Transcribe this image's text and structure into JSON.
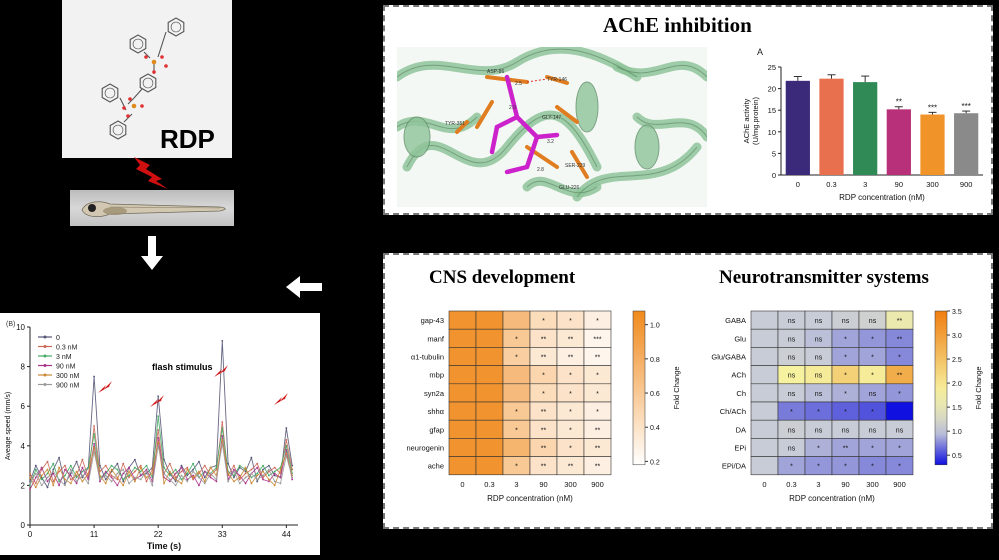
{
  "rdp_label": "RDP",
  "ache_title": "AChE inhibition",
  "cns_title": "CNS development",
  "nt_title": "Neurotransmitter systems",
  "flash_label": "flash stimulus",
  "docking_labels": [
    "ASP-86",
    "TYR-146",
    "GLY-147",
    "TYR-351",
    "SER-229",
    "GLU-226",
    "2.5",
    "2.9",
    "3.2",
    "2.8"
  ],
  "colors": {
    "molecule_bond": "#555555",
    "phosphorus": "#e08a1e",
    "oxygen": "#e03030",
    "lightning": "#d01010",
    "protein": "#8fc49a",
    "ligand": "#cc22cc",
    "residue": "#e07d20"
  },
  "speed_chart": {
    "type": "line",
    "panel_label": "(B)",
    "ylabel": "Aveage speed (mm/s)",
    "xlabel": "Time (s)",
    "xlim": [
      0,
      46
    ],
    "ylim": [
      0,
      10
    ],
    "xticks": [
      "0",
      "11",
      "22",
      "33",
      "44"
    ],
    "yticks": [
      "0",
      "2",
      "4",
      "6",
      "8",
      "10"
    ],
    "legend": [
      "0",
      "0.3 nM",
      "3 nM",
      "90 nM",
      "300 nM",
      "900 nM"
    ],
    "series_colors": [
      "#555577",
      "#cc6655",
      "#44aa66",
      "#aa3388",
      "#cc8833",
      "#999999"
    ],
    "x": [
      0,
      1,
      2,
      3,
      4,
      5,
      6,
      7,
      8,
      9,
      10,
      11,
      12,
      13,
      14,
      15,
      16,
      17,
      18,
      19,
      20,
      21,
      22,
      23,
      24,
      25,
      26,
      27,
      28,
      29,
      30,
      31,
      32,
      33,
      34,
      35,
      36,
      37,
      38,
      39,
      40,
      41,
      42,
      43,
      44,
      45
    ],
    "series": [
      {
        "values": [
          2.2,
          3.0,
          2.4,
          1.9,
          2.8,
          3.4,
          2.1,
          2.6,
          3.2,
          2.4,
          2.9,
          7.5,
          3.0,
          2.3,
          2.7,
          3.1,
          2.2,
          2.9,
          3.3,
          2.5,
          2.6,
          2.9,
          6.5,
          3.3,
          2.6,
          2.2,
          3.0,
          2.5,
          2.8,
          3.2,
          2.4,
          2.9,
          3.0,
          9.3,
          3.1,
          2.4,
          2.9,
          2.7,
          3.4,
          2.2,
          2.8,
          3.0,
          2.5,
          2.4,
          4.9,
          3.0
        ]
      },
      {
        "values": [
          2.6,
          2.1,
          2.8,
          3.2,
          2.2,
          2.7,
          3.0,
          2.3,
          2.5,
          3.3,
          2.4,
          5.0,
          2.7,
          3.0,
          2.5,
          2.3,
          3.1,
          2.4,
          2.7,
          3.0,
          2.2,
          2.8,
          4.8,
          2.6,
          3.1,
          2.4,
          2.7,
          2.9,
          2.3,
          2.6,
          3.0,
          2.5,
          2.8,
          5.2,
          2.5,
          3.0,
          2.3,
          2.6,
          2.8,
          3.1,
          2.4,
          2.7,
          2.9,
          2.6,
          4.3,
          2.8
        ]
      },
      {
        "values": [
          2.0,
          2.8,
          2.3,
          2.6,
          3.1,
          2.2,
          2.5,
          3.0,
          2.4,
          2.7,
          2.9,
          4.6,
          2.4,
          2.6,
          3.0,
          2.8,
          2.3,
          2.5,
          2.9,
          2.7,
          3.0,
          2.4,
          5.5,
          2.9,
          2.5,
          2.8,
          2.3,
          2.6,
          3.1,
          2.4,
          2.7,
          2.6,
          2.9,
          4.9,
          2.7,
          2.5,
          3.0,
          2.8,
          2.4,
          2.6,
          3.0,
          2.5,
          2.7,
          2.9,
          4.0,
          2.6
        ]
      },
      {
        "values": [
          1.8,
          2.4,
          2.9,
          2.2,
          2.6,
          2.0,
          2.8,
          2.5,
          2.1,
          2.9,
          2.3,
          4.1,
          2.2,
          2.7,
          2.4,
          2.0,
          2.6,
          2.9,
          2.3,
          2.5,
          2.8,
          2.2,
          4.4,
          2.4,
          2.2,
          2.6,
          2.9,
          2.3,
          2.5,
          2.0,
          2.7,
          2.4,
          2.2,
          4.5,
          2.3,
          2.8,
          2.5,
          2.1,
          2.6,
          2.9,
          2.3,
          2.2,
          2.6,
          2.4,
          3.8,
          2.3
        ]
      },
      {
        "values": [
          2.4,
          1.9,
          2.5,
          2.8,
          2.0,
          2.9,
          2.3,
          2.1,
          2.7,
          2.2,
          2.6,
          3.9,
          2.5,
          2.1,
          2.8,
          2.4,
          2.0,
          2.7,
          2.2,
          2.9,
          2.4,
          2.6,
          4.2,
          2.1,
          2.7,
          2.3,
          2.1,
          2.8,
          2.4,
          2.7,
          2.2,
          2.9,
          2.5,
          4.3,
          2.6,
          2.2,
          2.4,
          2.9,
          2.1,
          2.5,
          2.7,
          2.3,
          2.0,
          2.8,
          3.6,
          2.5
        ]
      },
      {
        "values": [
          2.1,
          2.6,
          2.0,
          2.4,
          2.7,
          2.3,
          2.0,
          2.8,
          2.2,
          2.5,
          2.1,
          3.7,
          2.3,
          2.5,
          2.2,
          2.6,
          2.8,
          2.1,
          2.4,
          2.3,
          2.7,
          2.0,
          4.0,
          2.6,
          2.3,
          2.0,
          2.5,
          2.2,
          2.7,
          2.4,
          2.1,
          2.6,
          2.3,
          4.1,
          2.2,
          2.7,
          2.1,
          2.4,
          2.6,
          2.3,
          2.5,
          2.8,
          2.2,
          2.1,
          3.5,
          2.4
        ]
      }
    ]
  },
  "ache_chart": {
    "type": "bar",
    "panel_label": "A",
    "categories": [
      "0",
      "0.3",
      "3",
      "90",
      "300",
      "900"
    ],
    "values": [
      21.8,
      22.3,
      21.5,
      15.2,
      14.0,
      14.3
    ],
    "errors": [
      1.0,
      0.9,
      1.4,
      0.6,
      0.5,
      0.5
    ],
    "significance": [
      "",
      "",
      "",
      "**",
      "***",
      "***"
    ],
    "colors": [
      "#3b2a7a",
      "#e8704f",
      "#2f8a55",
      "#b8307a",
      "#f0942a",
      "#8a8a8a"
    ],
    "ylabel_line1": "AChE activity",
    "ylabel_line2": "(U/mg.protein)",
    "xlabel": "RDP concentration (nM)",
    "ylim": [
      0,
      25
    ],
    "yticks": [
      "0",
      "5",
      "10",
      "15",
      "20",
      "25"
    ]
  },
  "cns_heatmap": {
    "type": "heatmap",
    "rows": [
      "gap-43",
      "manf",
      "α1-tubulin",
      "mbp",
      "syn2a",
      "shhα",
      "gfap",
      "neurogenin",
      "ache"
    ],
    "cols": [
      "0",
      "0.3",
      "3",
      "90",
      "300",
      "900"
    ],
    "values": [
      [
        1.0,
        1.0,
        0.7,
        0.45,
        0.4,
        0.3
      ],
      [
        1.0,
        1.0,
        0.6,
        0.4,
        0.35,
        0.25
      ],
      [
        1.0,
        1.0,
        0.55,
        0.35,
        0.3,
        0.25
      ],
      [
        1.0,
        1.0,
        0.7,
        0.5,
        0.4,
        0.35
      ],
      [
        1.0,
        1.0,
        0.7,
        0.45,
        0.4,
        0.35
      ],
      [
        1.0,
        1.0,
        0.6,
        0.4,
        0.35,
        0.3
      ],
      [
        1.0,
        1.0,
        0.6,
        0.4,
        0.35,
        0.3
      ],
      [
        1.0,
        1.0,
        0.75,
        0.5,
        0.4,
        0.35
      ],
      [
        1.0,
        1.0,
        0.6,
        0.4,
        0.35,
        0.3
      ]
    ],
    "stars": [
      [
        "",
        "",
        "",
        "*",
        "*",
        "*"
      ],
      [
        "",
        "",
        "*",
        "**",
        "**",
        "***"
      ],
      [
        "",
        "",
        "*",
        "**",
        "**",
        "**"
      ],
      [
        "",
        "",
        "",
        "*",
        "*",
        "*"
      ],
      [
        "",
        "",
        "",
        "*",
        "*",
        "*"
      ],
      [
        "",
        "",
        "*",
        "**",
        "*",
        "*"
      ],
      [
        "",
        "",
        "*",
        "**",
        "*",
        "**"
      ],
      [
        "",
        "",
        "",
        "**",
        "*",
        "**"
      ],
      [
        "",
        "",
        "*",
        "**",
        "**",
        "**"
      ]
    ],
    "xlabel": "RDP concentration (nM)",
    "colorbar_label": "Fold Change",
    "colorbar_ticks": [
      "0.2",
      "0.4",
      "0.6",
      "0.8",
      "1.0"
    ],
    "range": [
      0.18,
      1.08
    ]
  },
  "nt_heatmap": {
    "type": "heatmap",
    "rows": [
      "GABA",
      "Glu",
      "Glu/GABA",
      "ACh",
      "Ch",
      "Ch/ACh",
      "DA",
      "EPi",
      "EPi/DA"
    ],
    "cols": [
      "0",
      "0.3",
      "3",
      "90",
      "300",
      "900"
    ],
    "values": [
      [
        1.0,
        1.0,
        1.0,
        1.05,
        1.1,
        1.6
      ],
      [
        1.0,
        1.0,
        0.95,
        0.85,
        0.8,
        0.75
      ],
      [
        1.0,
        1.05,
        1.0,
        0.85,
        0.85,
        0.75
      ],
      [
        1.0,
        1.8,
        1.9,
        2.3,
        1.9,
        2.8
      ],
      [
        1.0,
        1.0,
        0.95,
        0.9,
        0.85,
        0.8
      ],
      [
        1.0,
        0.7,
        0.65,
        0.6,
        0.55,
        0.3
      ],
      [
        1.0,
        1.05,
        1.0,
        1.0,
        1.0,
        1.0
      ],
      [
        1.0,
        1.0,
        0.9,
        0.85,
        0.85,
        0.85
      ],
      [
        1.0,
        0.85,
        0.8,
        0.8,
        0.75,
        0.75
      ]
    ],
    "labels": [
      [
        "",
        "ns",
        "ns",
        "ns",
        "ns",
        "**"
      ],
      [
        "",
        "ns",
        "ns",
        "*",
        "*",
        "**"
      ],
      [
        "",
        "ns",
        "ns",
        "*",
        "*",
        "*"
      ],
      [
        "",
        "ns",
        "ns",
        "*",
        "*",
        "**"
      ],
      [
        "",
        "ns",
        "ns",
        "*",
        "ns",
        "*"
      ],
      [
        "",
        "*",
        "*",
        "*",
        "*",
        ""
      ],
      [
        "",
        "ns",
        "ns",
        "ns",
        "ns",
        "ns"
      ],
      [
        "",
        "ns",
        "*",
        "**",
        "*",
        "*"
      ],
      [
        "",
        "*",
        "*",
        "*",
        "*",
        "*"
      ]
    ],
    "xlabel": "RDP concentration (nM)",
    "colorbar_label": "Fold Change",
    "colorbar_ticks": [
      "0.5",
      "1.0",
      "1.5",
      "2.0",
      "2.5",
      "3.0",
      "3.5"
    ],
    "range": [
      0.3,
      3.5
    ]
  }
}
